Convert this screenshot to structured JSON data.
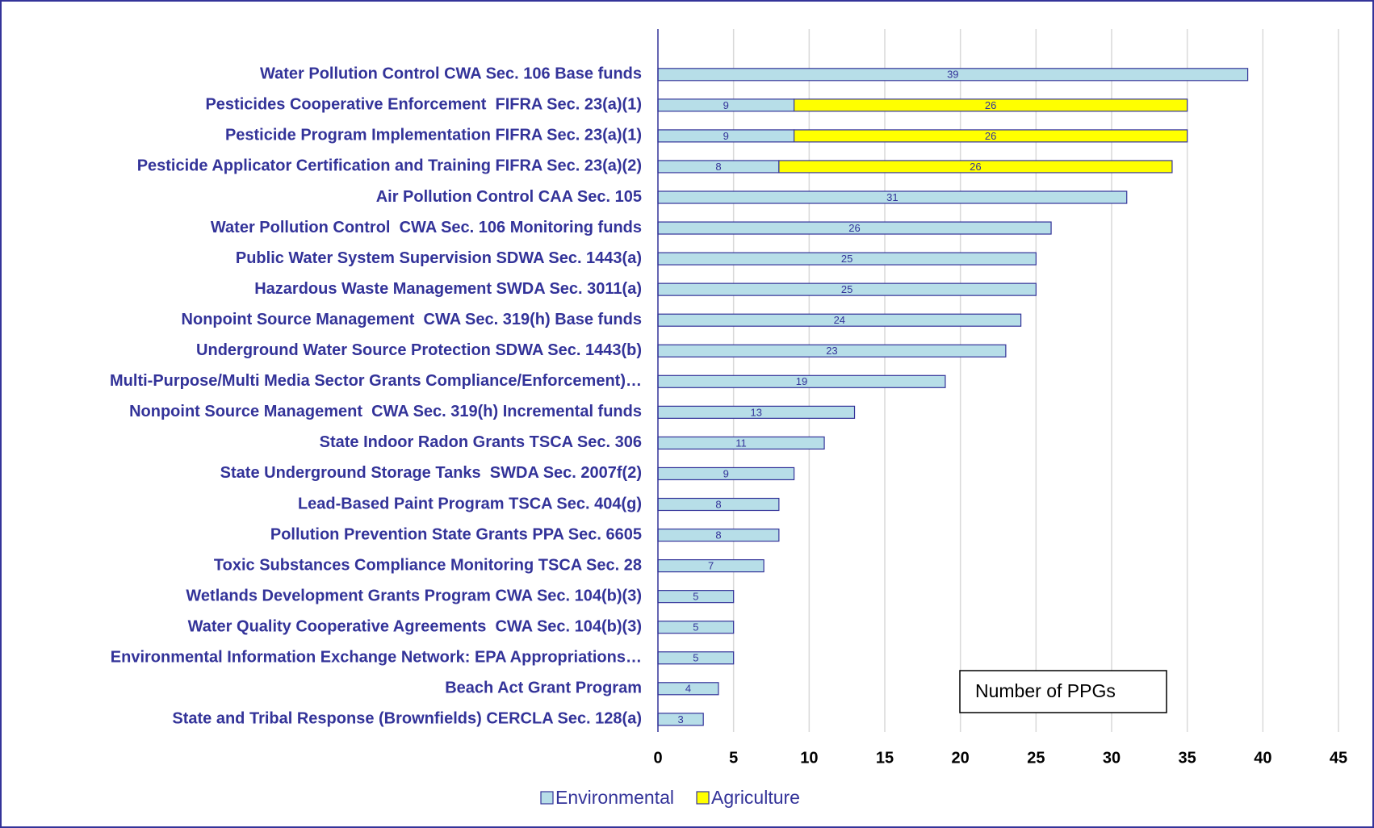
{
  "chart_data": {
    "type": "stacked_barh",
    "categories": [
      "Water Pollution Control CWA Sec. 106 Base funds",
      "Pesticides Cooperative Enforcement  FIFRA Sec. 23(a)(1)",
      "Pesticide Program Implementation FIFRA Sec. 23(a)(1)",
      "Pesticide Applicator Certification and Training FIFRA Sec. 23(a)(2)",
      "Air Pollution Control CAA Sec. 105",
      "Water Pollution Control  CWA Sec. 106 Monitoring funds",
      "Public Water System Supervision SDWA Sec. 1443(a)",
      "Hazardous Waste Management SWDA Sec. 3011(a)",
      "Nonpoint Source Management  CWA Sec. 319(h) Base funds",
      "Underground Water Source Protection SDWA Sec. 1443(b)",
      "Multi-Purpose/Multi Media Sector Grants Compliance/Enforcement)…",
      "Nonpoint Source Management  CWA Sec. 319(h) Incremental funds",
      "State Indoor Radon Grants TSCA Sec. 306",
      "State Underground Storage Tanks  SWDA Sec. 2007f(2)",
      "Lead-Based Paint Program TSCA Sec. 404(g)",
      "Pollution Prevention State Grants PPA Sec. 6605",
      "Toxic Substances Compliance Monitoring TSCA Sec. 28",
      "Wetlands Development Grants Program CWA Sec. 104(b)(3)",
      "Water Quality Cooperative Agreements  CWA Sec. 104(b)(3)",
      "Environmental Information Exchange Network: EPA Appropriations…",
      "Beach Act Grant Program",
      "State and Tribal Response (Brownfields) CERCLA Sec. 128(a)"
    ],
    "series": [
      {
        "name": "Environmental",
        "color": "#b7dee8",
        "values": [
          39,
          9,
          9,
          8,
          31,
          26,
          25,
          25,
          24,
          23,
          19,
          13,
          11,
          9,
          8,
          8,
          7,
          5,
          5,
          5,
          4,
          3
        ]
      },
      {
        "name": "Agriculture",
        "color": "#ffff00",
        "values": [
          null,
          26,
          26,
          26,
          null,
          null,
          null,
          null,
          null,
          null,
          null,
          null,
          null,
          null,
          null,
          null,
          null,
          null,
          null,
          null,
          null,
          null
        ]
      }
    ],
    "xlim": [
      0,
      45
    ],
    "xticks": [
      0,
      5,
      10,
      15,
      20,
      25,
      30,
      35,
      40,
      45
    ],
    "grid": true,
    "annotation": "Number of PPGs",
    "legend": "bottom"
  }
}
